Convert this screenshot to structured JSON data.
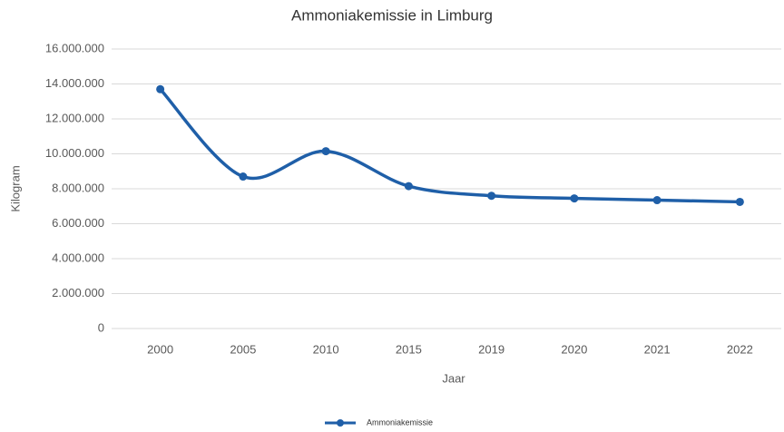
{
  "chart_data": {
    "type": "line",
    "title": "Ammoniakemissie in Limburg",
    "x_label": "Jaar",
    "y_label": "Kilogram",
    "categories": [
      "2000",
      "2005",
      "2010",
      "2015",
      "2019",
      "2020",
      "2021",
      "2022"
    ],
    "series": [
      {
        "name": "Ammoniakemissie",
        "color": "#1f5fa8",
        "values": [
          13700000,
          8700000,
          10150000,
          8150000,
          7600000,
          7450000,
          7350000,
          7250000
        ]
      }
    ],
    "ylim": [
      0,
      16000000
    ],
    "yticks": [
      0,
      {
        "value": 2000000,
        "label": "2.000.000"
      },
      {
        "value": 4000000,
        "label": "4.000.000"
      },
      {
        "value": 6000000,
        "label": "6.000.000"
      },
      {
        "value": 8000000,
        "label": "8.000.000"
      },
      {
        "value": 10000000,
        "label": "10.000.000"
      },
      {
        "value": 12000000,
        "label": "12.000.000"
      },
      {
        "value": 14000000,
        "label": "14.000.000"
      },
      {
        "value": 16000000,
        "label": "16.000.000"
      }
    ],
    "grid": true,
    "legend": "bottom"
  }
}
